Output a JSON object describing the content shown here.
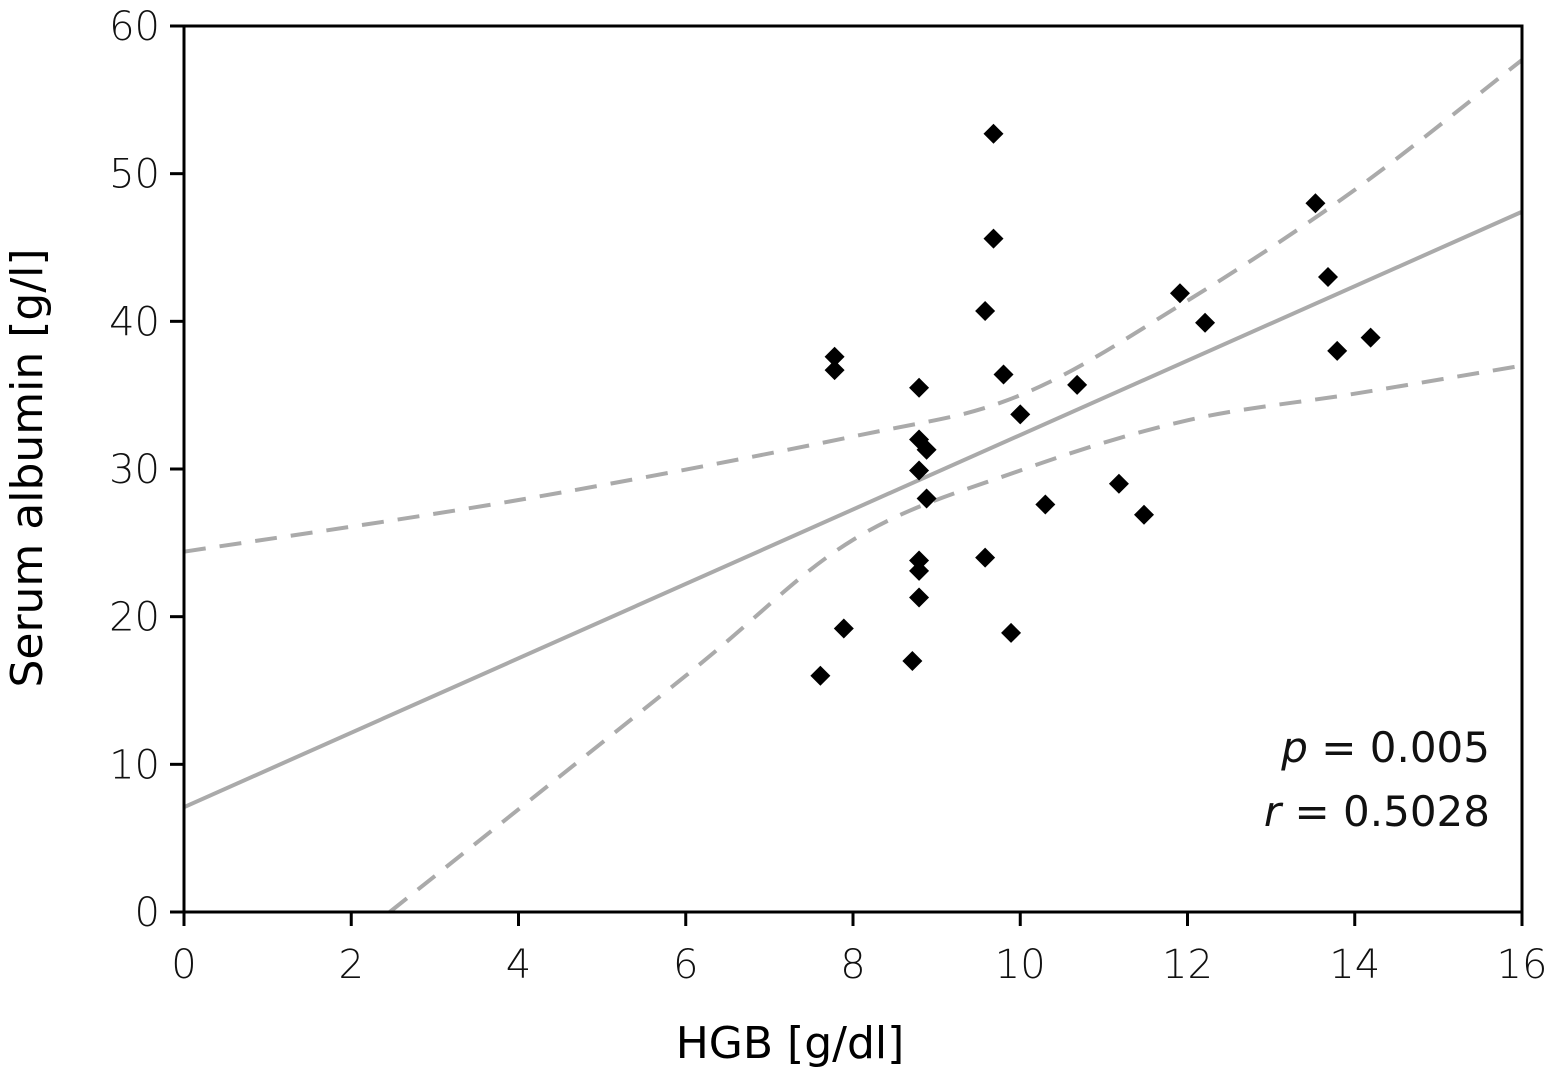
{
  "chart_data": {
    "type": "scatter",
    "title": "",
    "xlabel": "HGB [g/dl]",
    "ylabel": "Serum albumin [g/l]",
    "xlim": [
      0,
      16
    ],
    "ylim": [
      0,
      60
    ],
    "xticks": [
      0,
      2,
      4,
      6,
      8,
      10,
      12,
      14,
      16
    ],
    "yticks": [
      0,
      10,
      20,
      30,
      40,
      50,
      60
    ],
    "grid": false,
    "points": [
      [
        9.68,
        52.7
      ],
      [
        9.68,
        45.6
      ],
      [
        9.58,
        40.7
      ],
      [
        9.8,
        36.4
      ],
      [
        10.0,
        33.7
      ],
      [
        10.68,
        35.7
      ],
      [
        11.91,
        41.9
      ],
      [
        12.21,
        39.9
      ],
      [
        13.53,
        48.0
      ],
      [
        13.68,
        43.0
      ],
      [
        13.79,
        38.0
      ],
      [
        14.19,
        38.9
      ],
      [
        10.3,
        27.6
      ],
      [
        11.18,
        29.0
      ],
      [
        11.48,
        26.9
      ],
      [
        9.58,
        24.0
      ],
      [
        9.89,
        18.9
      ],
      [
        7.78,
        37.6
      ],
      [
        7.78,
        36.7
      ],
      [
        8.79,
        35.5
      ],
      [
        8.79,
        32.0
      ],
      [
        8.88,
        31.3
      ],
      [
        8.79,
        29.9
      ],
      [
        8.88,
        28.0
      ],
      [
        8.79,
        23.8
      ],
      [
        8.79,
        23.1
      ],
      [
        8.79,
        21.3
      ],
      [
        7.89,
        19.2
      ],
      [
        8.71,
        17.0
      ],
      [
        7.61,
        16.0
      ]
    ],
    "regression": {
      "intercept": 7.1,
      "slope": 2.52
    },
    "ci_upper": [
      [
        0,
        24.4
      ],
      [
        4,
        27.9
      ],
      [
        8,
        32.2
      ],
      [
        10,
        35.0
      ],
      [
        12,
        41.4
      ],
      [
        14,
        48.9
      ],
      [
        16,
        57.7
      ]
    ],
    "ci_lower": [
      [
        2.46,
        0
      ],
      [
        6,
        16.0
      ],
      [
        8,
        25.2
      ],
      [
        10,
        29.9
      ],
      [
        12,
        33.3
      ],
      [
        14,
        35.1
      ],
      [
        16,
        37.0
      ]
    ],
    "colors": {
      "points": "#000000",
      "lines": "#aaaaaa"
    },
    "annotations": {
      "p_symbol": "p",
      "p_text": " = 0.005",
      "r_symbol": "r",
      "r_text": " = 0.5028"
    }
  }
}
